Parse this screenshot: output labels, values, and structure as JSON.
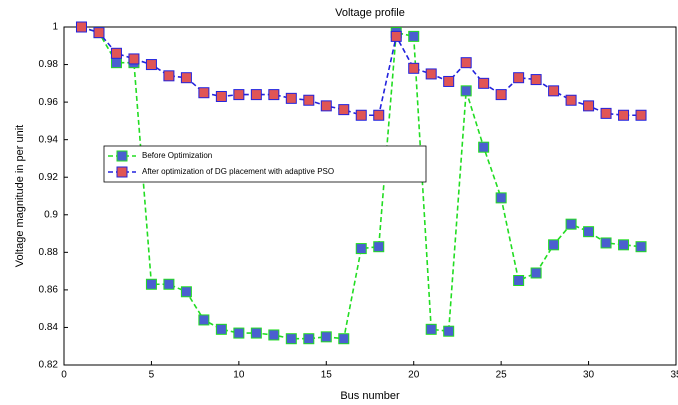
{
  "chart_data": {
    "type": "line",
    "title": "Voltage profile",
    "x_label": "Bus number",
    "y_label": "Voltage magnitude in per unit",
    "x": [
      1,
      2,
      3,
      4,
      5,
      6,
      7,
      8,
      9,
      10,
      11,
      12,
      13,
      14,
      15,
      16,
      17,
      18,
      19,
      20,
      21,
      22,
      23,
      24,
      25,
      26,
      27,
      28,
      29,
      30,
      31,
      32,
      33
    ],
    "series": [
      {
        "name": "Before Optimization",
        "color": "#4a5fd0",
        "line_color": "#22dd22",
        "values": [
          1,
          0.997,
          0.981,
          0.981,
          0.863,
          0.863,
          0.859,
          0.844,
          0.839,
          0.837,
          0.837,
          0.836,
          0.834,
          0.834,
          0.835,
          0.834,
          0.882,
          0.883,
          0.997,
          0.995,
          0.839,
          0.838,
          0.966,
          0.936,
          0.909,
          0.865,
          0.869,
          0.884,
          0.895,
          0.891,
          0.885,
          0.884,
          0.883
        ]
      },
      {
        "name": "After optimization of DG placement with adaptive PSO",
        "color": "#e05555",
        "line_color": "#2222dd",
        "values": [
          1,
          0.997,
          0.986,
          0.983,
          0.98,
          0.974,
          0.973,
          0.965,
          0.963,
          0.964,
          0.964,
          0.964,
          0.962,
          0.961,
          0.958,
          0.956,
          0.953,
          0.953,
          0.995,
          0.978,
          0.975,
          0.971,
          0.981,
          0.97,
          0.964,
          0.973,
          0.972,
          0.966,
          0.961,
          0.958,
          0.954,
          0.953,
          0.953
        ]
      }
    ],
    "xlim": [
      0,
      35
    ],
    "xticks": [
      0,
      5,
      10,
      15,
      20,
      25,
      30,
      35
    ],
    "ylim": [
      0.82,
      1
    ],
    "yticks": [
      0.82,
      0.84,
      0.86,
      0.88,
      0.9,
      0.92,
      0.94,
      0.96,
      0.98,
      1
    ]
  }
}
